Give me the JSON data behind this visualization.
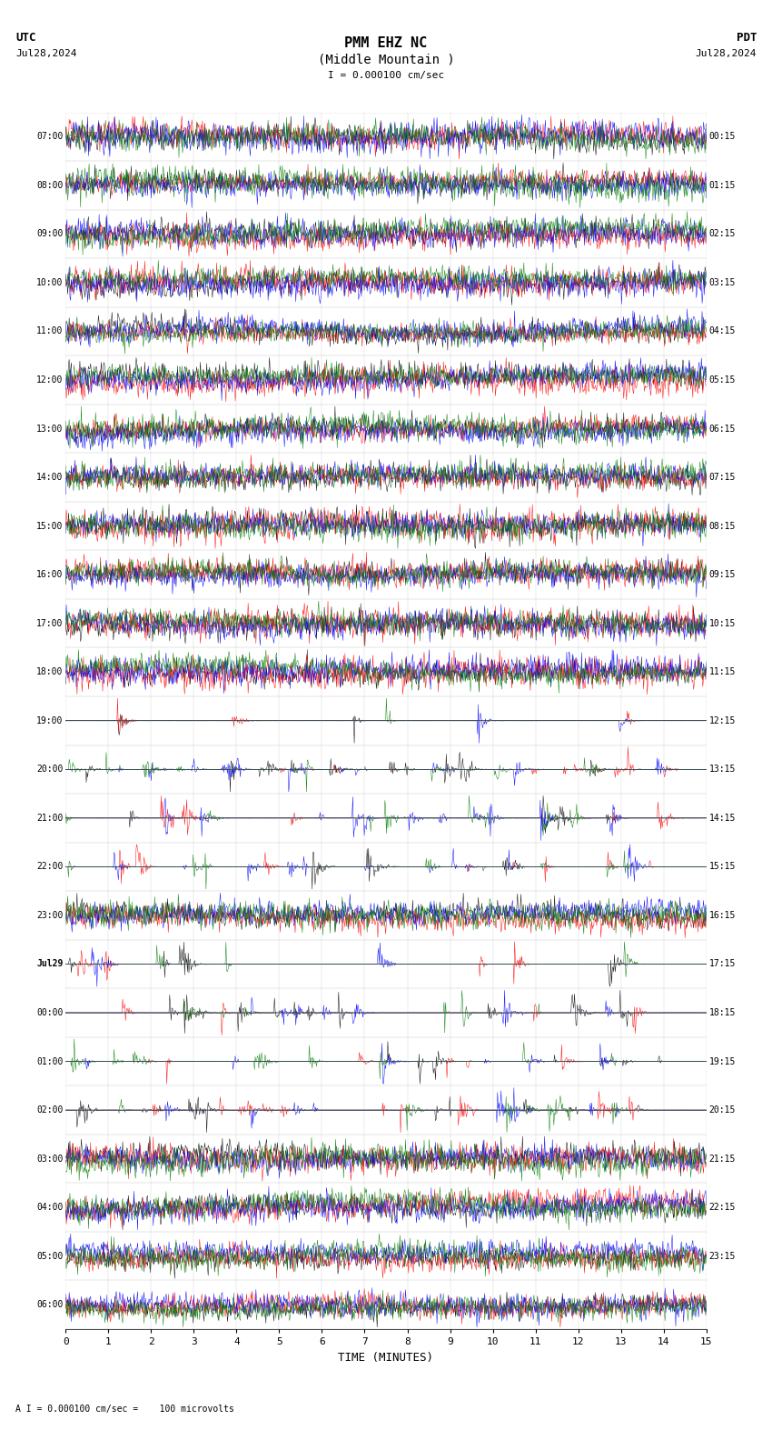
{
  "title_line1": "PMM EHZ NC",
  "title_line2": "(Middle Mountain )",
  "title_scale": "I = 0.000100 cm/sec",
  "label_utc": "UTC",
  "label_pdt": "PDT",
  "date_left": "Jul28,2024",
  "date_right": "Jul28,2024",
  "footer": "A I = 0.000100 cm/sec =    100 microvolts",
  "xlabel": "TIME (MINUTES)",
  "bg_color": "#ffffff",
  "trace_colors": [
    "black",
    "red",
    "blue",
    "green"
  ],
  "left_times": [
    "07:00",
    "08:00",
    "09:00",
    "10:00",
    "11:00",
    "12:00",
    "13:00",
    "14:00",
    "15:00",
    "16:00",
    "17:00",
    "18:00",
    "19:00",
    "20:00",
    "21:00",
    "22:00",
    "23:00",
    "Jul29",
    "00:00",
    "01:00",
    "02:00",
    "03:00",
    "04:00",
    "05:00",
    "06:00"
  ],
  "right_times": [
    "00:15",
    "01:15",
    "02:15",
    "03:15",
    "04:15",
    "05:15",
    "06:15",
    "07:15",
    "08:15",
    "09:15",
    "10:15",
    "11:15",
    "12:15",
    "13:15",
    "14:15",
    "15:15",
    "16:15",
    "17:15",
    "18:15",
    "19:15",
    "20:15",
    "21:15",
    "22:15",
    "23:15",
    "     "
  ],
  "n_rows": 25,
  "minutes_per_row": 15,
  "samples_per_row": 900,
  "active_rows": [
    12,
    13,
    14,
    15,
    17,
    18,
    19,
    20
  ],
  "very_active_rows": [
    13,
    14,
    15
  ],
  "active2_rows": [
    18,
    19,
    20
  ]
}
